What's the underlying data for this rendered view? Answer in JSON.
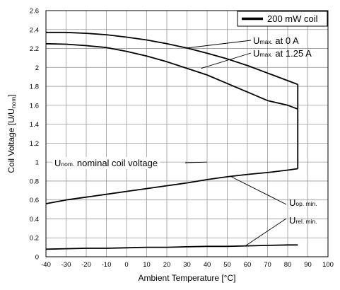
{
  "chart_data": {
    "type": "line",
    "xlabel": "Ambient Temperature [°C]",
    "ylabel": "Coil Voltage [U/U",
    "ylabel_sub": "nom",
    "ylabel_close": "]",
    "xlim": [
      -40,
      100
    ],
    "ylim": [
      0,
      2.6
    ],
    "x_ticks": [
      -40,
      -30,
      -20,
      -10,
      0,
      10,
      20,
      30,
      40,
      50,
      60,
      70,
      80,
      90,
      100
    ],
    "y_ticks": [
      0,
      0.2,
      0.4,
      0.6,
      0.8,
      1,
      1.2,
      1.4,
      1.6,
      1.8,
      2,
      2.2,
      2.4,
      2.6
    ],
    "grid": true,
    "legend": {
      "placement": "top-right",
      "label": "200 mW coil"
    },
    "series": [
      {
        "id": "umax0",
        "x": [
          -40,
          -30,
          -20,
          -10,
          0,
          10,
          20,
          30,
          40,
          50,
          60,
          70,
          80,
          85
        ],
        "y": [
          2.37,
          2.37,
          2.36,
          2.345,
          2.32,
          2.29,
          2.25,
          2.205,
          2.15,
          2.09,
          2.02,
          1.94,
          1.86,
          1.82
        ]
      },
      {
        "id": "umax125",
        "x": [
          -40,
          -30,
          -20,
          -10,
          0,
          10,
          20,
          30,
          40,
          50,
          60,
          70,
          80,
          85
        ],
        "y": [
          2.25,
          2.245,
          2.23,
          2.21,
          2.17,
          2.12,
          2.06,
          1.99,
          1.92,
          1.83,
          1.74,
          1.65,
          1.6,
          1.56
        ]
      },
      {
        "id": "uopmin",
        "x": [
          -40,
          -30,
          -20,
          -10,
          0,
          10,
          20,
          30,
          40,
          50,
          60,
          70,
          80,
          85
        ],
        "y": [
          0.56,
          0.6,
          0.63,
          0.66,
          0.69,
          0.72,
          0.75,
          0.78,
          0.815,
          0.845,
          0.87,
          0.89,
          0.915,
          0.93
        ]
      },
      {
        "id": "urelmin",
        "x": [
          -40,
          -30,
          -20,
          -10,
          0,
          10,
          20,
          30,
          40,
          50,
          60,
          70,
          80,
          85
        ],
        "y": [
          0.08,
          0.085,
          0.09,
          0.09,
          0.095,
          0.1,
          0.1,
          0.105,
          0.11,
          0.11,
          0.115,
          0.12,
          0.125,
          0.125
        ]
      }
    ],
    "vertical_limit": {
      "x": 85,
      "y_from": 0.93,
      "y_to": 1.82
    },
    "annotations": [
      {
        "main": "U",
        "sub": "max.",
        "rest": " at 0 A",
        "target_x": 30,
        "target_y": 2.205
      },
      {
        "main": "U",
        "sub": "max.",
        "rest": " at 1.25 A",
        "target_x": 37,
        "target_y": 1.99
      },
      {
        "main": "U",
        "sub": "nom.",
        "rest": " nominal coil voltage",
        "target_x": 40,
        "target_y": 1.0
      },
      {
        "main": "U",
        "sub": "op. min.",
        "rest": "",
        "target_x": 52,
        "target_y": 0.845
      },
      {
        "main": "U",
        "sub": "rel. min.",
        "rest": "",
        "target_x": 59,
        "target_y": 0.115
      }
    ]
  }
}
